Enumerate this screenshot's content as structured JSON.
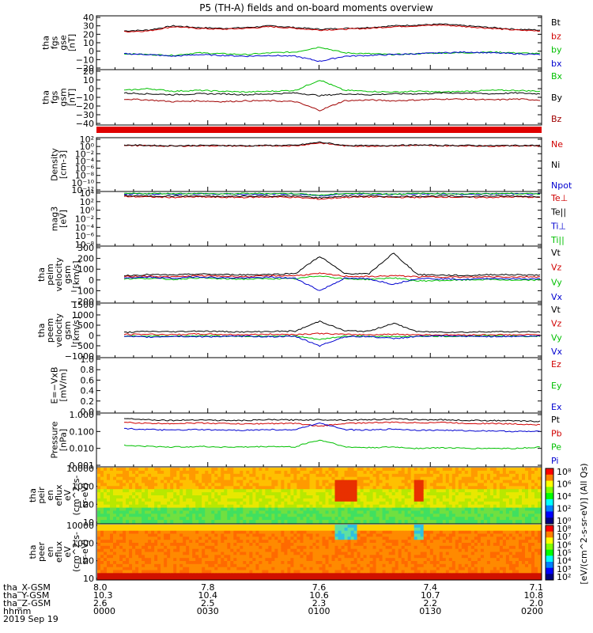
{
  "title": "P5 (TH-A) fields and on-board moments overview",
  "time_axis": {
    "ticks": [
      "0000",
      "0030",
      "0100",
      "0130",
      "0200"
    ],
    "row_labels": [
      "tha_X-GSM",
      "tha_Y-GSM",
      "tha_Z-GSM",
      "hhmm",
      "2019 Sep 19"
    ],
    "rows": [
      [
        "8.0",
        "7.8",
        "7.6",
        "7.4",
        "7.1"
      ],
      [
        "10.3",
        "10.4",
        "10.6",
        "10.7",
        "10.8"
      ],
      [
        "2.6",
        "2.5",
        "2.3",
        "2.2",
        "2.0"
      ]
    ]
  },
  "panels": [
    {
      "id": "fgs-gse",
      "ylabel": [
        "tha",
        "fgs",
        "gse",
        "[nT]"
      ],
      "yticks": [
        "40",
        "30",
        "20",
        "10",
        "0",
        "−10",
        "−20"
      ],
      "legend": [
        {
          "t": "Bt",
          "c": "#000000"
        },
        {
          "t": "bz",
          "c": "#d00000"
        },
        {
          "t": "by",
          "c": "#00c000"
        },
        {
          "t": "bx",
          "c": "#0000d0"
        }
      ]
    },
    {
      "id": "fgs-gsm",
      "ylabel": [
        "tha",
        "fgs",
        "gsm",
        "[nT]"
      ],
      "yticks": [
        "20",
        "10",
        "0",
        "−10",
        "−20",
        "−30",
        "−40"
      ],
      "legend": [
        {
          "t": "Bx",
          "c": "#00c000"
        },
        {
          "t": "By",
          "c": "#000000"
        },
        {
          "t": "Bz",
          "c": "#a00000"
        }
      ]
    },
    {
      "id": "density",
      "ylabel": [
        "Density",
        "[cm-3]"
      ],
      "yticks": [
        "10²",
        "10⁰",
        "10⁻²",
        "10⁻⁴",
        "10⁻⁶",
        "10⁻⁸",
        "10⁻¹⁰",
        "10⁻¹²"
      ],
      "legend": [
        {
          "t": "Ne",
          "c": "#d00000"
        },
        {
          "t": "Ni",
          "c": "#000000"
        },
        {
          "t": "Npot",
          "c": "#0000d0"
        }
      ]
    },
    {
      "id": "temperature",
      "ylabel": [
        "mag3",
        "[eV]"
      ],
      "yticks": [
        "10⁴",
        "10²",
        "10⁰",
        "10⁻²",
        "10⁻⁴",
        "10⁻⁶",
        "10⁻⁸"
      ],
      "legend": [
        {
          "t": "Te⊥",
          "c": "#d00000"
        },
        {
          "t": "Te||",
          "c": "#000000"
        },
        {
          "t": "Ti⊥",
          "c": "#0000d0"
        },
        {
          "t": "Ti||",
          "c": "#00c000"
        }
      ]
    },
    {
      "id": "peim-velocity",
      "ylabel": [
        "tha",
        "peim",
        "velocity",
        "gsm",
        "[km/s]"
      ],
      "yticks": [
        "300",
        "200",
        "100",
        "0",
        "−100",
        "−200"
      ],
      "legend": [
        {
          "t": "Vt",
          "c": "#000000"
        },
        {
          "t": "Vz",
          "c": "#d00000"
        },
        {
          "t": "Vy",
          "c": "#00c000"
        },
        {
          "t": "Vx",
          "c": "#0000d0"
        }
      ]
    },
    {
      "id": "peem-velocity",
      "ylabel": [
        "tha",
        "peem",
        "velocity",
        "gsm",
        "[km/s]"
      ],
      "yticks": [
        "1500",
        "1000",
        "500",
        "0",
        "−500",
        "−1000"
      ],
      "legend": [
        {
          "t": "Vt",
          "c": "#000000"
        },
        {
          "t": "Vz",
          "c": "#d00000"
        },
        {
          "t": "Vy",
          "c": "#00c000"
        },
        {
          "t": "Vx",
          "c": "#0000d0"
        }
      ]
    },
    {
      "id": "efield",
      "ylabel": [
        "E=−VxB",
        "[mV/m]"
      ],
      "yticks": [
        "1.0",
        "0.8",
        "0.6",
        "0.4",
        "0.2",
        "0.0"
      ],
      "legend": [
        {
          "t": "Ez",
          "c": "#d00000"
        },
        {
          "t": "Ey",
          "c": "#00c000"
        },
        {
          "t": "Ex",
          "c": "#0000d0"
        }
      ]
    },
    {
      "id": "pressure",
      "ylabel": [
        "Pressure",
        "[nPa]"
      ],
      "yticks": [
        "1.000",
        "0.100",
        "0.010",
        "0.001"
      ],
      "legend": [
        {
          "t": "Pt",
          "c": "#000000"
        },
        {
          "t": "Pb",
          "c": "#d00000"
        },
        {
          "t": "Pe",
          "c": "#00c000"
        },
        {
          "t": "Pi",
          "c": "#0000d0"
        }
      ]
    },
    {
      "id": "peir-spec",
      "ylabel": [
        "tha",
        "peir",
        "en",
        "eflux",
        "eV",
        "(cm^2-s-",
        "sr-eV)"
      ],
      "yticks": [
        "10000",
        "1000",
        "100",
        "10"
      ]
    },
    {
      "id": "peer-spec",
      "ylabel": [
        "tha",
        "peer",
        "en",
        "eflux",
        "eV",
        "(cm^2-s-",
        "sr-eV)"
      ],
      "yticks": [
        "10000",
        "1000",
        "100",
        "10"
      ]
    }
  ],
  "colorbar": {
    "label": "[eV/(cm^2-s-sr-eV)] (All Qs)",
    "upper_ticks": [
      "10⁸",
      "10⁶",
      "10⁴",
      "10²",
      "10⁰"
    ],
    "lower_ticks": [
      "10⁸",
      "10⁷",
      "10⁶",
      "10⁵",
      "10⁴",
      "10³",
      "10²"
    ]
  },
  "chart_data": [
    {
      "type": "line",
      "panel": "fgs-gse",
      "ylim": [
        -20,
        40
      ],
      "series": [
        {
          "name": "Bt",
          "values": [
            24,
            25,
            30,
            28,
            27,
            28,
            30,
            28,
            26,
            27,
            28,
            30,
            31,
            32,
            30,
            28,
            26,
            25
          ]
        },
        {
          "name": "bz",
          "values": [
            23,
            24,
            29,
            27,
            26,
            27,
            29,
            27,
            25,
            26,
            27,
            29,
            30,
            31,
            29,
            27,
            25,
            24
          ]
        },
        {
          "name": "by",
          "values": [
            -3,
            -4,
            -5,
            -2,
            -3,
            -4,
            -2,
            -1,
            5,
            -2,
            -3,
            -4,
            -3,
            -2,
            -2,
            -1,
            -2,
            -3
          ]
        },
        {
          "name": "bx",
          "values": [
            -3,
            -4,
            -6,
            -4,
            -5,
            -6,
            -5,
            -6,
            -12,
            -6,
            -5,
            -4,
            -3,
            -2,
            -1,
            -2,
            -3,
            -4
          ]
        }
      ]
    },
    {
      "type": "line",
      "panel": "fgs-gsm",
      "ylim": [
        -40,
        20
      ],
      "series": [
        {
          "name": "Bx",
          "values": [
            -2,
            0,
            -3,
            -2,
            -3,
            -4,
            -3,
            -2,
            10,
            -2,
            -3,
            -4,
            -3,
            -4,
            -3,
            -2,
            -2,
            -3
          ]
        },
        {
          "name": "By",
          "values": [
            -5,
            -6,
            -7,
            -6,
            -6,
            -7,
            -6,
            -5,
            -8,
            -6,
            -7,
            -6,
            -6,
            -5,
            -5,
            -6,
            -5,
            -6
          ]
        },
        {
          "name": "Bz",
          "values": [
            -12,
            -13,
            -15,
            -14,
            -15,
            -14,
            -14,
            -15,
            -25,
            -14,
            -13,
            -14,
            -13,
            -12,
            -12,
            -13,
            -12,
            -13
          ]
        }
      ]
    },
    {
      "type": "line",
      "panel": "density",
      "ylim": [
        -12,
        2
      ],
      "scale": "log",
      "series": [
        {
          "name": "Ne",
          "values": [
            0.3,
            0.2,
            0.1,
            0.2,
            0.2,
            0.1,
            0.2,
            0.2,
            1.0,
            0.2,
            0.1,
            0.2,
            0.3,
            0.2,
            0.2,
            0.1,
            0.2,
            0.2
          ]
        },
        {
          "name": "Ni",
          "values": [
            0.4,
            0.3,
            0.2,
            0.3,
            0.3,
            0.2,
            0.3,
            0.3,
            1.2,
            0.3,
            0.2,
            0.3,
            0.4,
            0.3,
            0.3,
            0.2,
            0.3,
            0.3
          ]
        }
      ]
    },
    {
      "type": "line",
      "panel": "temperature",
      "ylim": [
        -8,
        4
      ],
      "scale": "log",
      "series": [
        {
          "name": "Te⊥",
          "values": [
            3.2,
            3.1,
            3.0,
            3.1,
            3.0,
            3.0,
            3.1,
            3.0,
            2.6,
            3.0,
            3.1,
            3.0,
            3.0,
            3.1,
            3.0,
            3.0,
            3.1,
            3.0
          ]
        },
        {
          "name": "Te||",
          "values": [
            3.4,
            3.3,
            3.3,
            3.3,
            3.2,
            3.3,
            3.3,
            3.3,
            2.9,
            3.3,
            3.3,
            3.2,
            3.3,
            3.3,
            3.2,
            3.3,
            3.3,
            3.2
          ]
        },
        {
          "name": "Ti⊥",
          "values": [
            3.8,
            3.8,
            3.7,
            3.8,
            3.8,
            3.7,
            3.8,
            3.8,
            3.4,
            3.8,
            3.8,
            3.7,
            3.8,
            3.8,
            3.7,
            3.8,
            3.8,
            3.7
          ]
        },
        {
          "name": "Ti||",
          "values": [
            3.9,
            3.9,
            3.9,
            3.9,
            3.8,
            3.9,
            3.9,
            3.9,
            3.5,
            3.9,
            3.9,
            3.8,
            3.9,
            3.9,
            3.8,
            3.9,
            3.9,
            3.8
          ]
        }
      ]
    },
    {
      "type": "line",
      "panel": "peim-velocity",
      "ylim": [
        -200,
        300
      ],
      "series": [
        {
          "name": "Vt",
          "values": [
            40,
            50,
            45,
            55,
            50,
            48,
            52,
            60,
            220,
            60,
            55,
            250,
            50,
            45,
            40,
            50,
            48,
            45
          ]
        },
        {
          "name": "Vz",
          "values": [
            30,
            35,
            28,
            40,
            35,
            30,
            38,
            40,
            60,
            35,
            30,
            40,
            30,
            28,
            25,
            30,
            28,
            30
          ]
        },
        {
          "name": "Vy",
          "values": [
            10,
            15,
            5,
            20,
            10,
            8,
            12,
            10,
            40,
            10,
            5,
            20,
            -10,
            -5,
            0,
            5,
            -5,
            0
          ]
        },
        {
          "name": "Vx",
          "values": [
            20,
            25,
            15,
            30,
            20,
            18,
            25,
            15,
            -100,
            15,
            10,
            -40,
            15,
            10,
            5,
            15,
            10,
            10
          ]
        }
      ]
    },
    {
      "type": "line",
      "panel": "peem-velocity",
      "ylim": [
        -1000,
        1500
      ],
      "series": [
        {
          "name": "Vt",
          "values": [
            150,
            200,
            180,
            220,
            190,
            170,
            200,
            210,
            700,
            230,
            200,
            600,
            180,
            170,
            160,
            190,
            180,
            170
          ]
        },
        {
          "name": "Vz",
          "values": [
            50,
            60,
            40,
            70,
            50,
            40,
            60,
            50,
            100,
            50,
            40,
            60,
            40,
            30,
            30,
            40,
            30,
            40
          ]
        },
        {
          "name": "Vy",
          "values": [
            -30,
            -20,
            -40,
            -10,
            -30,
            -40,
            -20,
            -30,
            -200,
            -30,
            -40,
            -60,
            -30,
            -40,
            -30,
            -20,
            -30,
            -40
          ]
        },
        {
          "name": "Vx",
          "values": [
            -50,
            -80,
            -40,
            -60,
            -50,
            -40,
            -60,
            -50,
            -500,
            -60,
            -50,
            -150,
            -40,
            -30,
            -40,
            -50,
            -40,
            -30
          ]
        }
      ]
    },
    {
      "type": "line",
      "panel": "pressure",
      "ylim": [
        0.001,
        1.0
      ],
      "scale": "log",
      "series": [
        {
          "name": "Pt",
          "values": [
            0.6,
            0.5,
            0.45,
            0.5,
            0.45,
            0.45,
            0.5,
            0.48,
            0.5,
            0.48,
            0.5,
            0.55,
            0.5,
            0.5,
            0.45,
            0.45,
            0.42,
            0.4
          ]
        },
        {
          "name": "Pb",
          "values": [
            0.35,
            0.3,
            0.3,
            0.32,
            0.3,
            0.28,
            0.3,
            0.3,
            0.2,
            0.3,
            0.33,
            0.35,
            0.33,
            0.35,
            0.3,
            0.3,
            0.28,
            0.25
          ]
        },
        {
          "name": "Pe",
          "values": [
            0.015,
            0.013,
            0.012,
            0.013,
            0.012,
            0.012,
            0.013,
            0.012,
            0.03,
            0.012,
            0.011,
            0.012,
            0.01,
            0.011,
            0.01,
            0.01,
            0.01,
            0.012
          ]
        },
        {
          "name": "Pi",
          "values": [
            0.15,
            0.13,
            0.12,
            0.13,
            0.12,
            0.12,
            0.13,
            0.12,
            0.3,
            0.13,
            0.12,
            0.14,
            0.12,
            0.12,
            0.11,
            0.11,
            0.1,
            0.1
          ]
        }
      ]
    }
  ]
}
